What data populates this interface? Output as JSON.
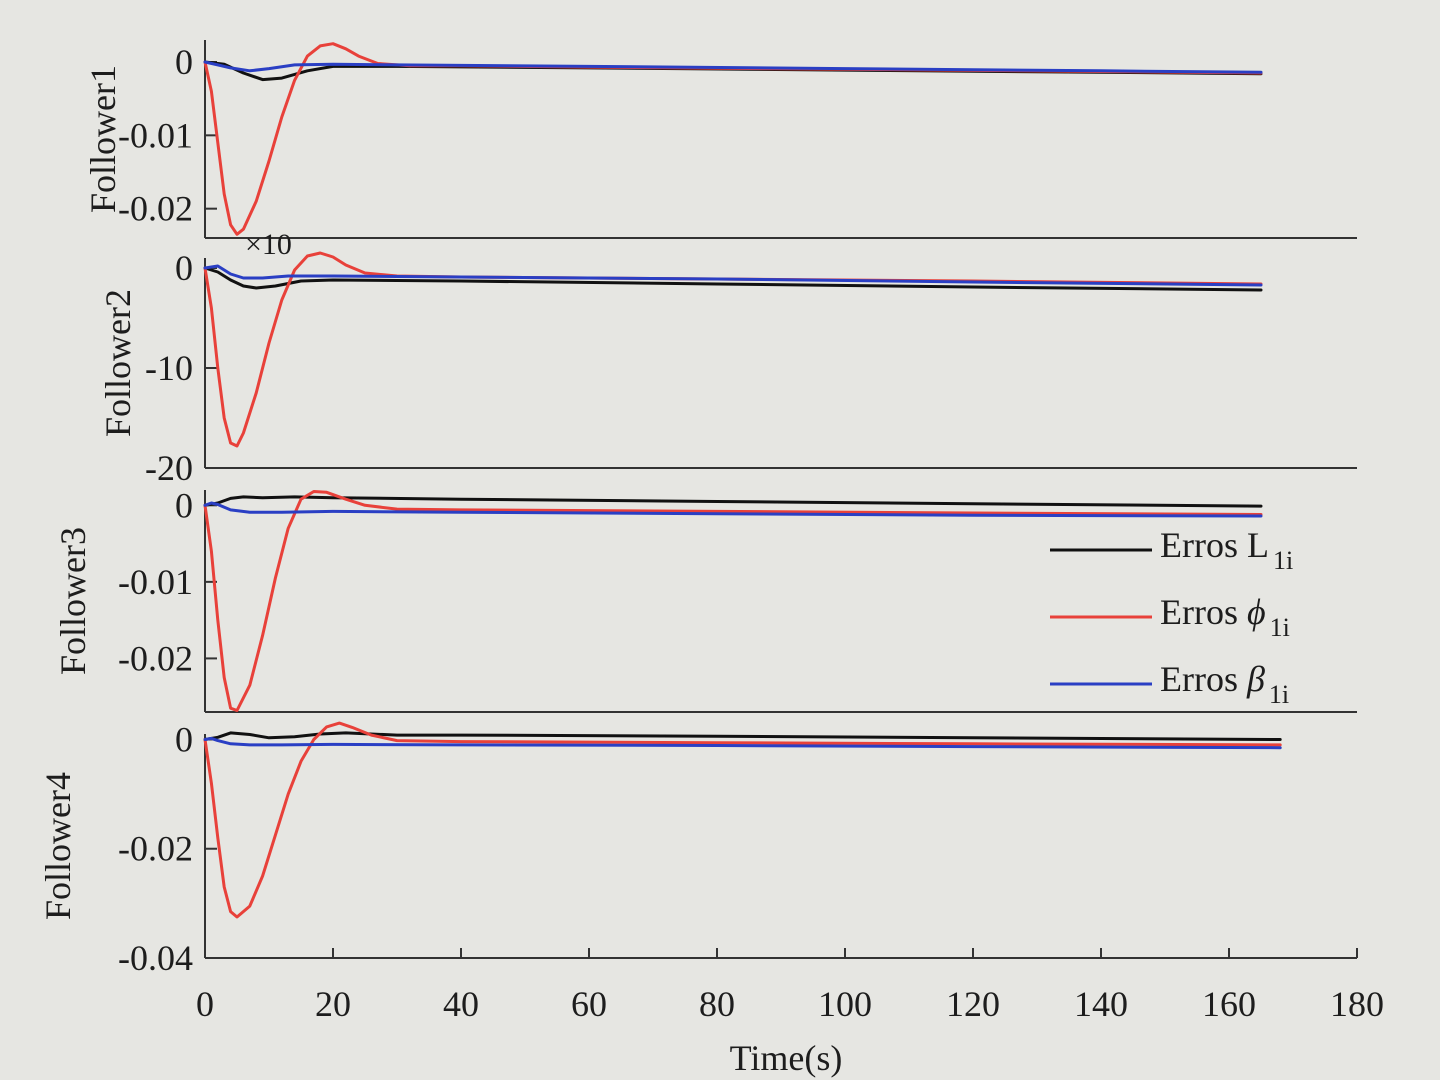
{
  "chart_data": {
    "type": "line",
    "layout": "4 stacked subplots sharing the x axis",
    "xlabel": "Time(s)",
    "xlim": [
      0,
      180
    ],
    "xticks": [
      0,
      20,
      40,
      60,
      80,
      100,
      120,
      140,
      160,
      180
    ],
    "colors": {
      "L": "#111111",
      "phi": "#e8413a",
      "beta": "#2a3fc4",
      "axis": "#333333"
    },
    "legend": {
      "location": "right, inside Follower3 panel",
      "entries": [
        {
          "key": "L",
          "prefix": "Erros ",
          "symbol": "L",
          "subscript": "1i"
        },
        {
          "key": "phi",
          "prefix": "Erros ",
          "symbol": "ϕ",
          "subscript": "1i"
        },
        {
          "key": "beta",
          "prefix": "Erros ",
          "symbol": "β",
          "subscript": "1i"
        }
      ]
    },
    "panels": [
      {
        "ylabel": "Follower1",
        "ylim": [
          -0.024,
          0.003
        ],
        "yticks": [
          0,
          -0.01,
          -0.02
        ],
        "ytick_labels": [
          "0",
          "-0.01",
          "-0.02"
        ],
        "exponent_label": "×10",
        "series": [
          {
            "key": "L",
            "points": [
              [
                0,
                0
              ],
              [
                3,
                -0.0003
              ],
              [
                6,
                -0.0015
              ],
              [
                9,
                -0.0024
              ],
              [
                12,
                -0.0022
              ],
              [
                16,
                -0.0012
              ],
              [
                20,
                -0.0006
              ],
              [
                30,
                -0.0006
              ],
              [
                60,
                -0.0008
              ],
              [
                100,
                -0.0011
              ],
              [
                140,
                -0.0014
              ],
              [
                165,
                -0.0016
              ]
            ]
          },
          {
            "key": "phi",
            "points": [
              [
                0,
                0
              ],
              [
                1,
                -0.004
              ],
              [
                2,
                -0.011
              ],
              [
                3,
                -0.018
              ],
              [
                4,
                -0.0222
              ],
              [
                5,
                -0.0235
              ],
              [
                6,
                -0.0228
              ],
              [
                8,
                -0.019
              ],
              [
                10,
                -0.0135
              ],
              [
                12,
                -0.0075
              ],
              [
                14,
                -0.0025
              ],
              [
                16,
                0.0008
              ],
              [
                18,
                0.0022
              ],
              [
                20,
                0.0025
              ],
              [
                22,
                0.0018
              ],
              [
                24,
                0.0008
              ],
              [
                27,
                -0.0002
              ],
              [
                32,
                -0.0005
              ],
              [
                40,
                -0.0005
              ],
              [
                60,
                -0.0007
              ],
              [
                100,
                -0.001
              ],
              [
                140,
                -0.0013
              ],
              [
                165,
                -0.0015
              ]
            ]
          },
          {
            "key": "beta",
            "points": [
              [
                0,
                0
              ],
              [
                2,
                -0.0004
              ],
              [
                4,
                -0.0008
              ],
              [
                7,
                -0.0012
              ],
              [
                10,
                -0.0009
              ],
              [
                14,
                -0.0004
              ],
              [
                20,
                -0.0003
              ],
              [
                30,
                -0.0004
              ],
              [
                60,
                -0.0006
              ],
              [
                100,
                -0.0009
              ],
              [
                140,
                -0.0012
              ],
              [
                165,
                -0.0014
              ]
            ]
          }
        ]
      },
      {
        "ylabel": "Follower2",
        "ylim": [
          -20,
          1
        ],
        "yticks": [
          0,
          -10,
          -20
        ],
        "ytick_labels": [
          "0",
          "-10",
          "-20"
        ],
        "series": [
          {
            "key": "L",
            "points": [
              [
                0,
                0
              ],
              [
                2,
                -0.4
              ],
              [
                4,
                -1.2
              ],
              [
                6,
                -1.8
              ],
              [
                8,
                -2
              ],
              [
                11,
                -1.8
              ],
              [
                15,
                -1.3
              ],
              [
                20,
                -1.2
              ],
              [
                40,
                -1.3
              ],
              [
                80,
                -1.6
              ],
              [
                120,
                -1.9
              ],
              [
                165,
                -2.2
              ]
            ]
          },
          {
            "key": "phi",
            "points": [
              [
                0,
                0
              ],
              [
                1,
                -4
              ],
              [
                2,
                -10
              ],
              [
                3,
                -15
              ],
              [
                4,
                -17.5
              ],
              [
                5,
                -17.8
              ],
              [
                6,
                -16.5
              ],
              [
                8,
                -12.5
              ],
              [
                10,
                -7.5
              ],
              [
                12,
                -3.2
              ],
              [
                14,
                -0.2
              ],
              [
                16,
                1.2
              ],
              [
                18,
                1.5
              ],
              [
                20,
                1.1
              ],
              [
                22,
                0.3
              ],
              [
                25,
                -0.5
              ],
              [
                30,
                -0.8
              ],
              [
                40,
                -0.9
              ],
              [
                80,
                -1.1
              ],
              [
                120,
                -1.3
              ],
              [
                165,
                -1.6
              ]
            ]
          },
          {
            "key": "beta",
            "points": [
              [
                0,
                0
              ],
              [
                2,
                0.2
              ],
              [
                4,
                -0.6
              ],
              [
                6,
                -1
              ],
              [
                9,
                -1
              ],
              [
                13,
                -0.8
              ],
              [
                20,
                -0.8
              ],
              [
                40,
                -0.9
              ],
              [
                80,
                -1.1
              ],
              [
                120,
                -1.4
              ],
              [
                165,
                -1.7
              ]
            ]
          }
        ]
      },
      {
        "ylabel": "Follower3",
        "ylim": [
          -0.027,
          0.002
        ],
        "yticks": [
          0,
          -0.01,
          -0.02
        ],
        "ytick_labels": [
          "0",
          "-0.01",
          "-0.02"
        ],
        "series": [
          {
            "key": "L",
            "points": [
              [
                0,
                0
              ],
              [
                2,
                0.0003
              ],
              [
                4,
                0.0009
              ],
              [
                6,
                0.0011
              ],
              [
                9,
                0.001
              ],
              [
                14,
                0.0011
              ],
              [
                20,
                0.001
              ],
              [
                40,
                0.0008
              ],
              [
                80,
                0.0005
              ],
              [
                120,
                0.0002
              ],
              [
                165,
                -0.0001
              ]
            ]
          },
          {
            "key": "phi",
            "points": [
              [
                0,
                0
              ],
              [
                1,
                -0.006
              ],
              [
                2,
                -0.015
              ],
              [
                3,
                -0.0225
              ],
              [
                4,
                -0.0265
              ],
              [
                5,
                -0.0268
              ],
              [
                7,
                -0.0235
              ],
              [
                9,
                -0.017
              ],
              [
                11,
                -0.0095
              ],
              [
                13,
                -0.003
              ],
              [
                15,
                0.0008
              ],
              [
                17,
                0.0018
              ],
              [
                19,
                0.0017
              ],
              [
                22,
                0.0008
              ],
              [
                25,
                0
              ],
              [
                30,
                -0.0005
              ],
              [
                40,
                -0.0006
              ],
              [
                80,
                -0.0008
              ],
              [
                120,
                -0.001
              ],
              [
                165,
                -0.0012
              ]
            ]
          },
          {
            "key": "beta",
            "points": [
              [
                0,
                0
              ],
              [
                1,
                0.0003
              ],
              [
                2,
                0.0001
              ],
              [
                4,
                -0.0006
              ],
              [
                7,
                -0.0009
              ],
              [
                12,
                -0.0009
              ],
              [
                20,
                -0.0008
              ],
              [
                40,
                -0.0009
              ],
              [
                80,
                -0.0011
              ],
              [
                120,
                -0.0013
              ],
              [
                165,
                -0.0014
              ]
            ]
          }
        ]
      },
      {
        "ylabel": "Follower4",
        "ylim": [
          -0.04,
          0.001
        ],
        "yticks": [
          0,
          -0.02,
          -0.04
        ],
        "ytick_labels": [
          "0",
          "-0.02",
          "-0.04"
        ],
        "series": [
          {
            "key": "L",
            "points": [
              [
                0,
                0
              ],
              [
                2,
                0.0004
              ],
              [
                4,
                0.0012
              ],
              [
                7,
                0.0009
              ],
              [
                10,
                0.0003
              ],
              [
                14,
                0.0005
              ],
              [
                18,
                0.001
              ],
              [
                22,
                0.0012
              ],
              [
                30,
                0.0008
              ],
              [
                40,
                0.0008
              ],
              [
                80,
                0.0006
              ],
              [
                120,
                0.0003
              ],
              [
                168,
                0
              ]
            ]
          },
          {
            "key": "phi",
            "points": [
              [
                0,
                0
              ],
              [
                1,
                -0.008
              ],
              [
                2,
                -0.018
              ],
              [
                3,
                -0.027
              ],
              [
                4,
                -0.0315
              ],
              [
                5,
                -0.0325
              ],
              [
                7,
                -0.0305
              ],
              [
                9,
                -0.025
              ],
              [
                11,
                -0.0175
              ],
              [
                13,
                -0.01
              ],
              [
                15,
                -0.004
              ],
              [
                17,
                0
              ],
              [
                19,
                0.0023
              ],
              [
                21,
                0.003
              ],
              [
                23,
                0.0022
              ],
              [
                26,
                0.0008
              ],
              [
                30,
                -0.0002
              ],
              [
                40,
                -0.0004
              ],
              [
                80,
                -0.0006
              ],
              [
                120,
                -0.0008
              ],
              [
                168,
                -0.001
              ]
            ]
          },
          {
            "key": "beta",
            "points": [
              [
                0,
                0
              ],
              [
                1,
                0.0002
              ],
              [
                2,
                -0.0002
              ],
              [
                4,
                -0.0008
              ],
              [
                7,
                -0.001
              ],
              [
                12,
                -0.001
              ],
              [
                20,
                -0.0009
              ],
              [
                40,
                -0.001
              ],
              [
                80,
                -0.0011
              ],
              [
                120,
                -0.0013
              ],
              [
                168,
                -0.0015
              ]
            ]
          }
        ]
      }
    ]
  }
}
